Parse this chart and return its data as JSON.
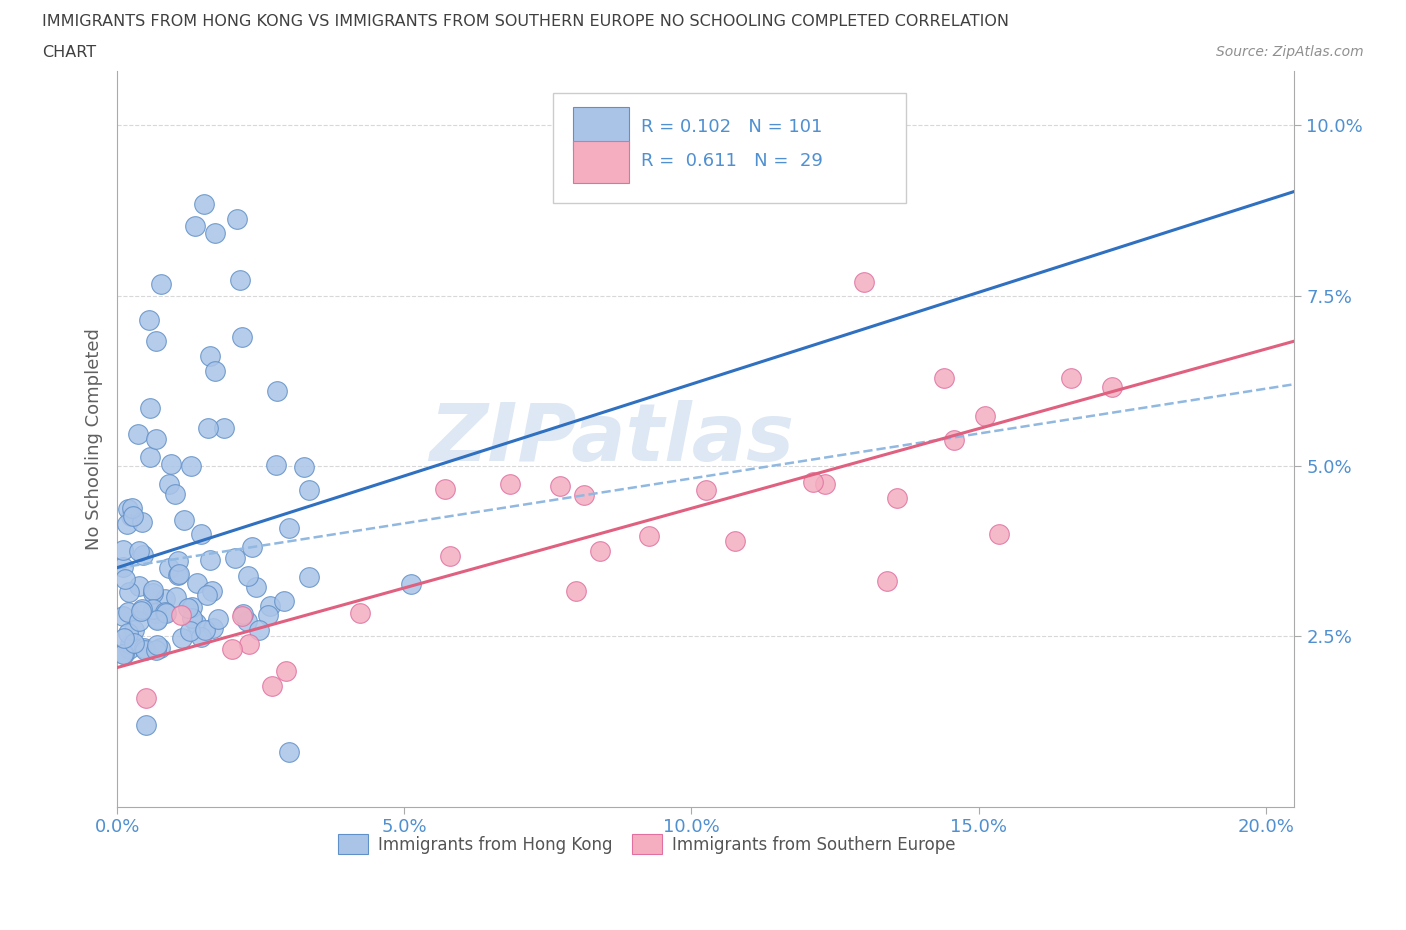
{
  "title_line1": "IMMIGRANTS FROM HONG KONG VS IMMIGRANTS FROM SOUTHERN EUROPE NO SCHOOLING COMPLETED CORRELATION",
  "title_line2": "CHART",
  "source": "Source: ZipAtlas.com",
  "ylabel": "No Schooling Completed",
  "xlim": [
    0.0,
    0.205
  ],
  "ylim": [
    0.0,
    0.108
  ],
  "xticks": [
    0.0,
    0.05,
    0.1,
    0.15,
    0.2
  ],
  "yticks": [
    0.025,
    0.05,
    0.075,
    0.1
  ],
  "xticklabels": [
    "0.0%",
    "5.0%",
    "10.0%",
    "15.0%",
    "20.0%"
  ],
  "yticklabels": [
    "2.5%",
    "5.0%",
    "7.5%",
    "10.0%"
  ],
  "hk_color": "#aac4e8",
  "se_color": "#f4aec0",
  "hk_edge_color": "#6090c8",
  "se_edge_color": "#e070a0",
  "hk_line_color": "#3070c0",
  "se_line_color": "#e06080",
  "dashed_line_color": "#90b8e0",
  "hk_R": 0.102,
  "hk_N": 101,
  "se_R": 0.611,
  "se_N": 29,
  "legend_label_hk": "Immigrants from Hong Kong",
  "legend_label_se": "Immigrants from Southern Europe",
  "watermark_text": "ZIPatlas",
  "background_color": "#ffffff",
  "grid_color": "#d8d8d8",
  "title_color": "#404040",
  "tick_color": "#5090d0",
  "axis_color": "#aaaaaa",
  "ylabel_color": "#606060",
  "source_color": "#909090"
}
